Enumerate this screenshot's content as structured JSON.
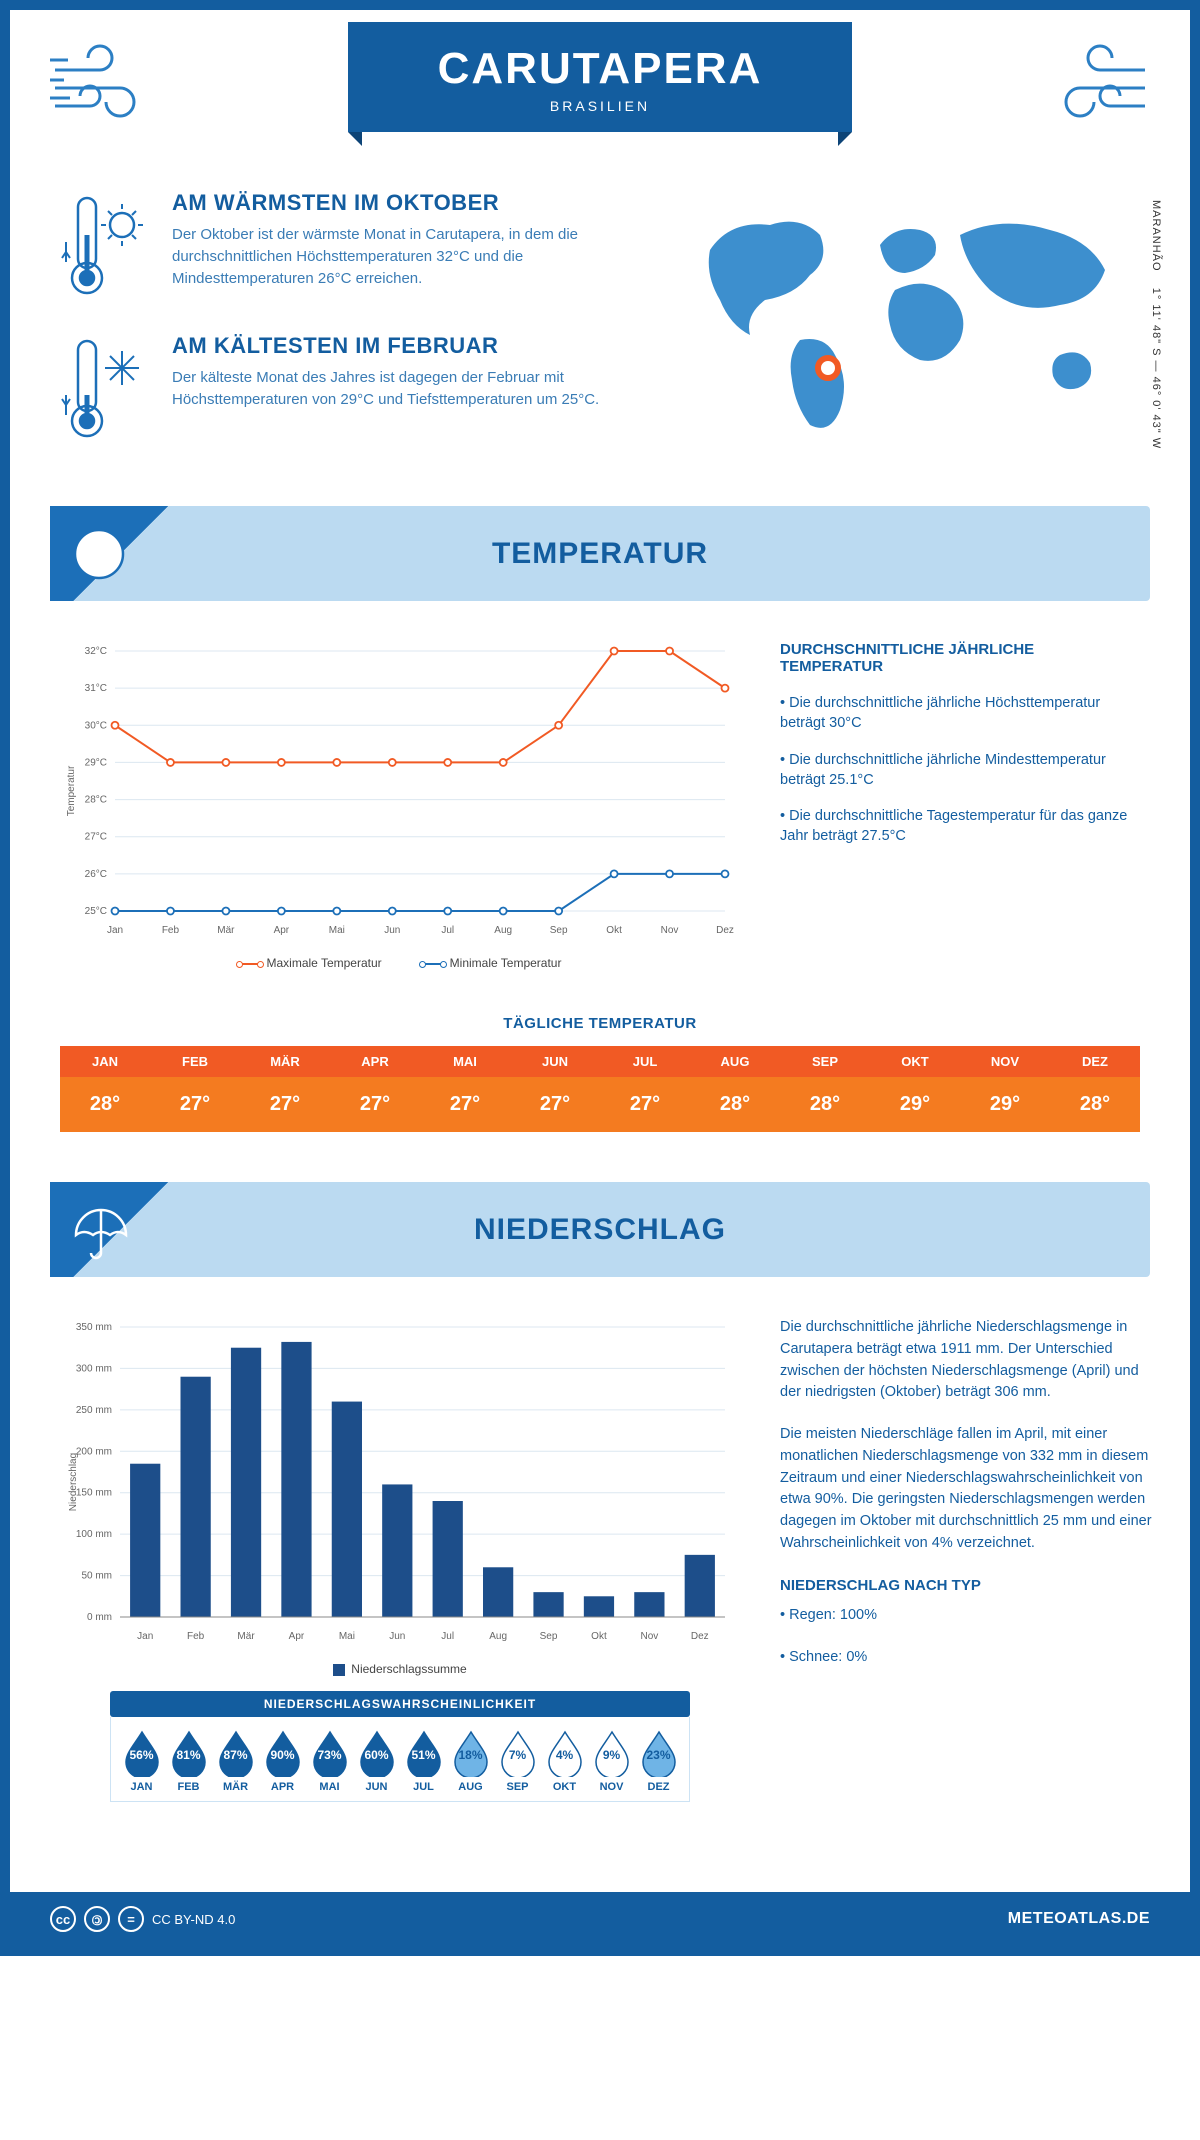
{
  "header": {
    "title": "CARUTAPERA",
    "subtitle": "BRASILIEN"
  },
  "location": {
    "region": "MARANHÃO",
    "coords": "1° 11' 48\" S — 46° 0' 43\" W",
    "marker_color": "#f15a24"
  },
  "colors": {
    "primary": "#135d9f",
    "light": "#bbdaf1",
    "accent": "#2c7fc4",
    "orange_dark": "#f15a24",
    "orange": "#f47b20",
    "max_line": "#f15a24",
    "min_line": "#1c6fb8",
    "bar": "#1d4e8a",
    "grid": "#dce7f0",
    "bg": "#ffffff"
  },
  "warmest": {
    "heading": "AM WÄRMSTEN IM OKTOBER",
    "text": "Der Oktober ist der wärmste Monat in Carutapera, in dem die durchschnittlichen Höchsttemperaturen 32°C und die Mindesttemperaturen 26°C erreichen."
  },
  "coldest": {
    "heading": "AM KÄLTESTEN IM FEBRUAR",
    "text": "Der kälteste Monat des Jahres ist dagegen der Februar mit Höchsttemperaturen von 29°C und Tiefsttemperaturen um 25°C."
  },
  "months_short": [
    "Jan",
    "Feb",
    "Mär",
    "Apr",
    "Mai",
    "Jun",
    "Jul",
    "Aug",
    "Sep",
    "Okt",
    "Nov",
    "Dez"
  ],
  "months_upper": [
    "JAN",
    "FEB",
    "MÄR",
    "APR",
    "MAI",
    "JUN",
    "JUL",
    "AUG",
    "SEP",
    "OKT",
    "NOV",
    "DEZ"
  ],
  "temperature": {
    "banner": "TEMPERATUR",
    "ylabel": "Temperatur",
    "ylim": [
      25,
      32
    ],
    "ytick_step": 1,
    "ytick_suffix": "°C",
    "max_series": [
      30,
      29,
      29,
      29,
      29,
      29,
      29,
      29,
      30,
      32,
      32,
      31
    ],
    "min_series": [
      25,
      25,
      25,
      25,
      25,
      25,
      25,
      25,
      25,
      26,
      26,
      26
    ],
    "legend_max": "Maximale Temperatur",
    "legend_min": "Minimale Temperatur",
    "side_heading": "DURCHSCHNITTLICHE JÄHRLICHE TEMPERATUR",
    "bullets": [
      "• Die durchschnittliche jährliche Höchsttemperatur beträgt 30°C",
      "• Die durchschnittliche jährliche Mindesttemperatur beträgt 25.1°C",
      "• Die durchschnittliche Tagestemperatur für das ganze Jahr beträgt 27.5°C"
    ]
  },
  "daily_temp": {
    "heading": "TÄGLICHE TEMPERATUR",
    "values": [
      "28°",
      "27°",
      "27°",
      "27°",
      "27°",
      "27°",
      "27°",
      "28°",
      "28°",
      "29°",
      "29°",
      "28°"
    ]
  },
  "precip": {
    "banner": "NIEDERSCHLAG",
    "ylabel": "Niederschlag",
    "ylim": [
      0,
      350
    ],
    "ytick_step": 50,
    "ytick_suffix": " mm",
    "values": [
      185,
      290,
      325,
      332,
      260,
      160,
      140,
      60,
      30,
      25,
      30,
      75
    ],
    "legend": "Niederschlagssumme",
    "paragraphs": [
      "Die durchschnittliche jährliche Niederschlagsmenge in Carutapera beträgt etwa 1911 mm. Der Unterschied zwischen der höchsten Niederschlagsmenge (April) und der niedrigsten (Oktober) beträgt 306 mm.",
      "Die meisten Niederschläge fallen im April, mit einer monatlichen Niederschlagsmenge von 332 mm in diesem Zeitraum und einer Niederschlagswahrscheinlichkeit von etwa 90%. Die geringsten Niederschlagsmengen werden dagegen im Oktober mit durchschnittlich 25 mm und einer Wahrscheinlichkeit von 4% verzeichnet."
    ],
    "type_heading": "NIEDERSCHLAG NACH TYP",
    "type_bullets": [
      "• Regen: 100%",
      "• Schnee: 0%"
    ]
  },
  "probability": {
    "heading": "NIEDERSCHLAGSWAHRSCHEINLICHKEIT",
    "values": [
      56,
      81,
      87,
      90,
      73,
      60,
      51,
      18,
      7,
      4,
      9,
      23
    ]
  },
  "footer": {
    "license": "CC BY-ND 4.0",
    "site": "METEOATLAS.DE"
  }
}
